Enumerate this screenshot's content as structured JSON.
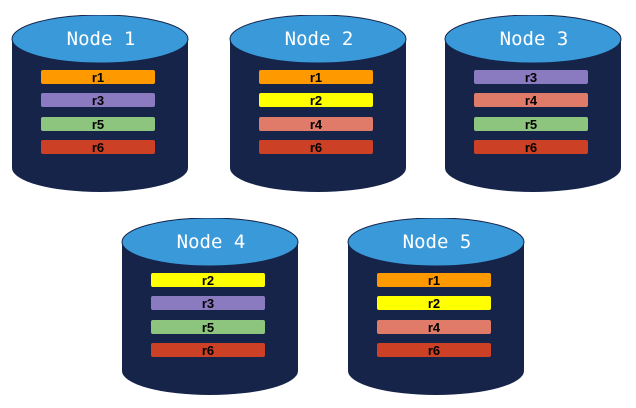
{
  "colors": {
    "body": "#16244A",
    "top": "#3A9AD9",
    "r1": "#FF9900",
    "r2": "#FFFF00",
    "r3": "#8A7BC0",
    "r4": "#E07B6A",
    "r5": "#8DC47E",
    "r6": "#CC4125"
  },
  "nodes": [
    {
      "title": "Node 1",
      "replicas": [
        "r1",
        "r3",
        "r5",
        "r6"
      ]
    },
    {
      "title": "Node 2",
      "replicas": [
        "r1",
        "r2",
        "r4",
        "r6"
      ]
    },
    {
      "title": "Node 3",
      "replicas": [
        "r3",
        "r4",
        "r5",
        "r6"
      ]
    },
    {
      "title": "Node 4",
      "replicas": [
        "r2",
        "r3",
        "r5",
        "r6"
      ]
    },
    {
      "title": "Node 5",
      "replicas": [
        "r1",
        "r2",
        "r4",
        "r6"
      ]
    }
  ]
}
